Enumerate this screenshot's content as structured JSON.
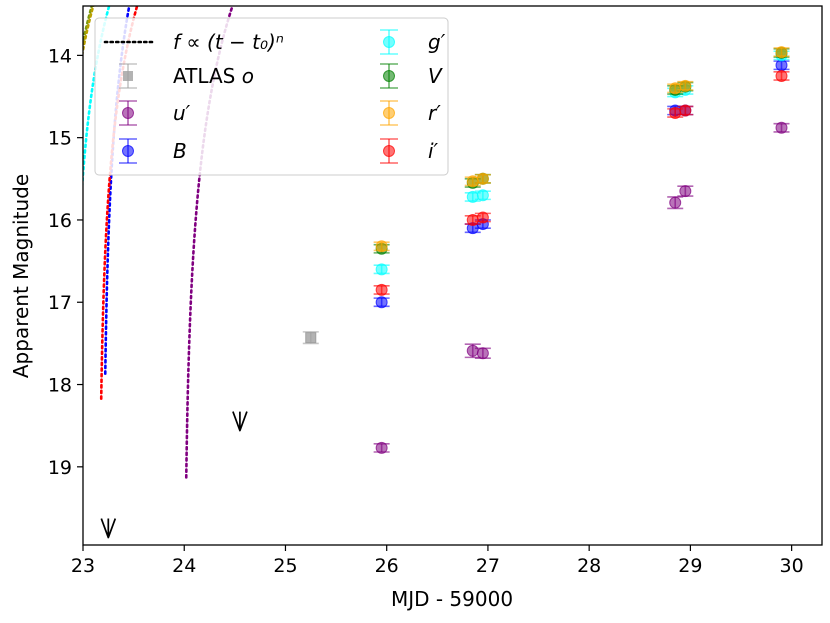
{
  "chart_data": {
    "type": "scatter",
    "xlabel": "MJD - 59000",
    "ylabel": "Apparent Magnitude",
    "xlim": [
      23.0,
      30.3
    ],
    "ylim": [
      19.95,
      13.4
    ],
    "y_inverted": true,
    "xticks": [
      23,
      24,
      25,
      26,
      27,
      28,
      29,
      30
    ],
    "yticks": [
      14,
      15,
      16,
      17,
      18,
      19
    ],
    "fit_label": "f ∝ (t − t₀)ⁿ",
    "series": [
      {
        "name": "ATLAS o",
        "display": "ATLAS o",
        "color": "#a0a0a0",
        "marker": "square",
        "points": [
          {
            "x": 25.25,
            "y": 17.43,
            "err": 0.07
          }
        ]
      },
      {
        "name": "u'",
        "display": "u′",
        "color": "#800080",
        "marker": "circle",
        "points": [
          {
            "x": 25.95,
            "y": 18.77,
            "err": 0.05
          },
          {
            "x": 26.85,
            "y": 17.59,
            "err": 0.08
          },
          {
            "x": 26.95,
            "y": 17.62,
            "err": 0.06
          },
          {
            "x": 28.85,
            "y": 15.79,
            "err": 0.07
          },
          {
            "x": 28.95,
            "y": 15.65,
            "err": 0.06
          },
          {
            "x": 29.9,
            "y": 14.88,
            "err": 0.05
          }
        ],
        "fit": {
          "t0": 24.0,
          "A": 12.06,
          "B": 4.16
        }
      },
      {
        "name": "B",
        "display": "B",
        "color": "#0000ff",
        "marker": "circle",
        "points": [
          {
            "x": 25.95,
            "y": 17.0,
            "err": 0.05
          },
          {
            "x": 26.85,
            "y": 16.1,
            "err": 0.05
          },
          {
            "x": 26.95,
            "y": 16.05,
            "err": 0.05
          },
          {
            "x": 28.85,
            "y": 14.67,
            "err": 0.05
          },
          {
            "x": 28.95,
            "y": 14.67,
            "err": 0.05
          },
          {
            "x": 29.9,
            "y": 14.12,
            "err": 0.05
          }
        ],
        "fit": {
          "t0": 23.2,
          "A": 11.02,
          "B": 4.03
        }
      },
      {
        "name": "g'",
        "display": "g′",
        "color": "#00ffff",
        "marker": "circle",
        "points": [
          {
            "x": 25.95,
            "y": 16.6,
            "err": 0.05
          },
          {
            "x": 26.85,
            "y": 15.72,
            "err": 0.05
          },
          {
            "x": 26.95,
            "y": 15.7,
            "err": 0.05
          },
          {
            "x": 28.85,
            "y": 14.45,
            "err": 0.05
          },
          {
            "x": 28.95,
            "y": 14.42,
            "err": 0.05
          },
          {
            "x": 29.9,
            "y": 14.0,
            "err": 0.05
          }
        ],
        "fit": {
          "t0": 22.9,
          "A": 11.75,
          "B": 3.7
        }
      },
      {
        "name": "V",
        "display": "V",
        "color": "#008000",
        "marker": "circle",
        "points": [
          {
            "x": 25.95,
            "y": 16.35,
            "err": 0.05
          },
          {
            "x": 26.85,
            "y": 15.55,
            "err": 0.05
          },
          {
            "x": 26.95,
            "y": 15.5,
            "err": 0.05
          },
          {
            "x": 28.85,
            "y": 14.42,
            "err": 0.05
          },
          {
            "x": 28.95,
            "y": 14.38,
            "err": 0.05
          },
          {
            "x": 29.9,
            "y": 13.97,
            "err": 0.05
          }
        ],
        "fit": {
          "t0": 22.74,
          "A": 11.79,
          "B": 3.5
        }
      },
      {
        "name": "r'",
        "display": "r′",
        "color": "#ffa500",
        "marker": "circle",
        "points": [
          {
            "x": 25.95,
            "y": 16.32,
            "err": 0.05
          },
          {
            "x": 26.85,
            "y": 15.53,
            "err": 0.05
          },
          {
            "x": 26.95,
            "y": 15.5,
            "err": 0.05
          },
          {
            "x": 28.85,
            "y": 14.4,
            "err": 0.05
          },
          {
            "x": 28.95,
            "y": 14.37,
            "err": 0.05
          },
          {
            "x": 29.9,
            "y": 13.96,
            "err": 0.05
          }
        ],
        "fit": {
          "t0": 22.76,
          "A": 11.76,
          "B": 3.51
        }
      },
      {
        "name": "i'",
        "display": "i′",
        "color": "#ff0000",
        "marker": "circle",
        "points": [
          {
            "x": 25.95,
            "y": 16.85,
            "err": 0.05
          },
          {
            "x": 26.85,
            "y": 16.0,
            "err": 0.05
          },
          {
            "x": 26.95,
            "y": 15.97,
            "err": 0.05
          },
          {
            "x": 28.85,
            "y": 14.7,
            "err": 0.05
          },
          {
            "x": 28.95,
            "y": 14.67,
            "err": 0.05
          },
          {
            "x": 29.9,
            "y": 14.25,
            "err": 0.05
          }
        ],
        "fit": {
          "t0": 23.16,
          "A": 11.8,
          "B": 3.75
        }
      }
    ],
    "upper_limits": [
      {
        "x": 23.25,
        "y": 19.75
      },
      {
        "x": 24.55,
        "y": 18.45
      }
    ],
    "fit_color_gold": "#b8a000",
    "legend": {
      "location": "upper-left",
      "columns": [
        [
          "fit",
          "ATLAS o",
          "u'",
          "B"
        ],
        [
          "g'",
          "V",
          "r'",
          "i'"
        ]
      ]
    }
  }
}
